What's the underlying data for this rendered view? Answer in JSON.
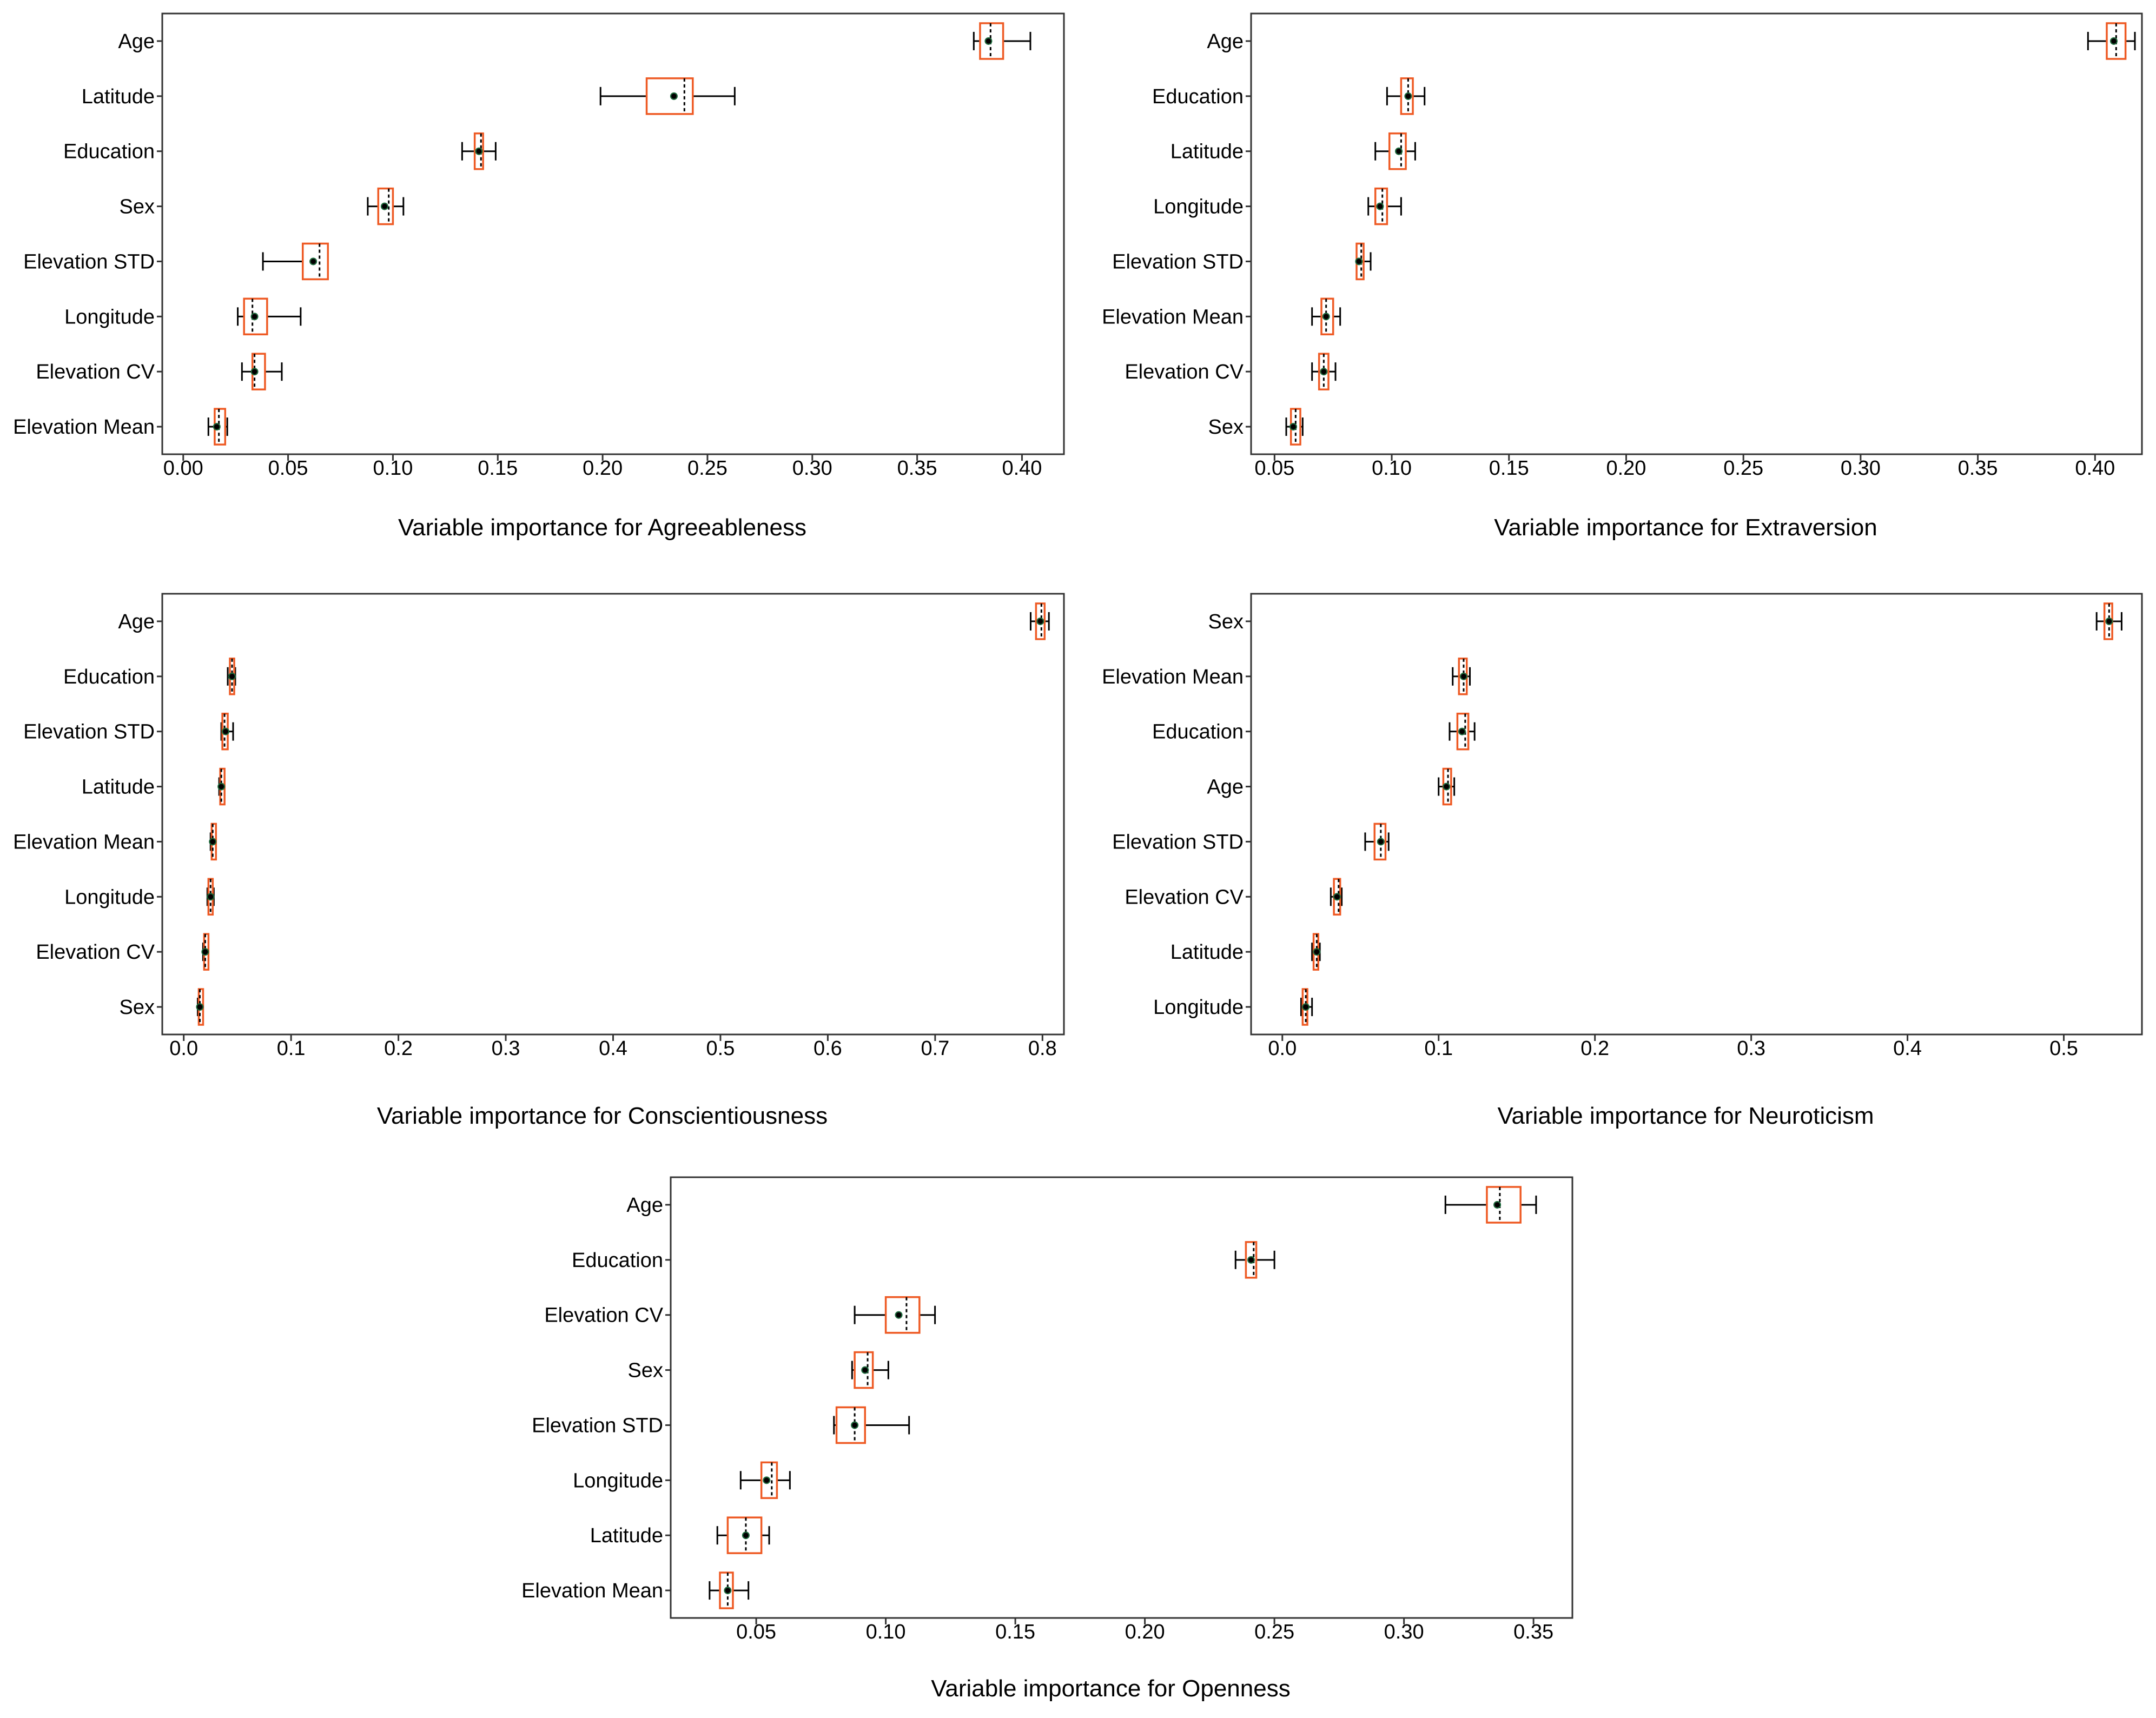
{
  "colors": {
    "box_stroke": "#ee5a24",
    "whisker": "#000000",
    "mean": "#000000",
    "frame": "#333333"
  },
  "chart_data": [
    {
      "type": "box",
      "xlabel": "Variable importance for Agreeableness",
      "xlim": [
        -0.01,
        0.42
      ],
      "xticks": [
        "0.00",
        "0.05",
        "0.10",
        "0.15",
        "0.20",
        "0.25",
        "0.30",
        "0.35",
        "0.40"
      ],
      "grid": false,
      "categories": [
        "Age",
        "Latitude",
        "Education",
        "Sex",
        "Elevation STD",
        "Longitude",
        "Elevation CV",
        "Elevation Mean"
      ],
      "stats": [
        {
          "min": 0.377,
          "q1": 0.38,
          "median": 0.385,
          "mean": 0.384,
          "q3": 0.391,
          "max": 0.404
        },
        {
          "min": 0.199,
          "q1": 0.221,
          "median": 0.239,
          "mean": 0.234,
          "q3": 0.243,
          "max": 0.263
        },
        {
          "min": 0.133,
          "q1": 0.139,
          "median": 0.142,
          "mean": 0.141,
          "q3": 0.143,
          "max": 0.149
        },
        {
          "min": 0.088,
          "q1": 0.093,
          "median": 0.098,
          "mean": 0.096,
          "q3": 0.1,
          "max": 0.105
        },
        {
          "min": 0.038,
          "q1": 0.057,
          "median": 0.065,
          "mean": 0.062,
          "q3": 0.069,
          "max": 0.069
        },
        {
          "min": 0.026,
          "q1": 0.029,
          "median": 0.033,
          "mean": 0.034,
          "q3": 0.04,
          "max": 0.056
        },
        {
          "min": 0.028,
          "q1": 0.033,
          "median": 0.034,
          "mean": 0.034,
          "q3": 0.039,
          "max": 0.047
        },
        {
          "min": 0.012,
          "q1": 0.015,
          "median": 0.017,
          "mean": 0.016,
          "q3": 0.02,
          "max": 0.021
        }
      ]
    },
    {
      "type": "box",
      "xlabel": "Variable importance for Extraversion",
      "xlim": [
        0.04,
        0.42
      ],
      "xticks": [
        "0.05",
        "0.10",
        "0.15",
        "0.20",
        "0.25",
        "0.30",
        "0.35",
        "0.40"
      ],
      "grid": false,
      "categories": [
        "Age",
        "Education",
        "Latitude",
        "Longitude",
        "Elevation STD",
        "Elevation Mean",
        "Elevation CV",
        "Sex"
      ],
      "stats": [
        {
          "min": 0.397,
          "q1": 0.405,
          "median": 0.409,
          "mean": 0.408,
          "q3": 0.413,
          "max": 0.417
        },
        {
          "min": 0.098,
          "q1": 0.104,
          "median": 0.107,
          "mean": 0.107,
          "q3": 0.109,
          "max": 0.114
        },
        {
          "min": 0.093,
          "q1": 0.099,
          "median": 0.104,
          "mean": 0.103,
          "q3": 0.106,
          "max": 0.11
        },
        {
          "min": 0.09,
          "q1": 0.093,
          "median": 0.096,
          "mean": 0.095,
          "q3": 0.098,
          "max": 0.104
        },
        {
          "min": 0.085,
          "q1": 0.085,
          "median": 0.087,
          "mean": 0.086,
          "q3": 0.088,
          "max": 0.091
        },
        {
          "min": 0.066,
          "q1": 0.07,
          "median": 0.072,
          "mean": 0.072,
          "q3": 0.075,
          "max": 0.078
        },
        {
          "min": 0.066,
          "q1": 0.069,
          "median": 0.071,
          "mean": 0.071,
          "q3": 0.073,
          "max": 0.076
        },
        {
          "min": 0.055,
          "q1": 0.057,
          "median": 0.059,
          "mean": 0.058,
          "q3": 0.061,
          "max": 0.062
        }
      ]
    },
    {
      "type": "box",
      "xlabel": "Variable importance for Conscientiousness",
      "xlim": [
        -0.02,
        0.82
      ],
      "xticks": [
        "0.0",
        "0.1",
        "0.2",
        "0.3",
        "0.4",
        "0.5",
        "0.6",
        "0.7",
        "0.8"
      ],
      "grid": false,
      "categories": [
        "Age",
        "Education",
        "Elevation STD",
        "Latitude",
        "Elevation Mean",
        "Longitude",
        "Elevation CV",
        "Sex"
      ],
      "stats": [
        {
          "min": 0.789,
          "q1": 0.794,
          "median": 0.799,
          "mean": 0.798,
          "q3": 0.802,
          "max": 0.806
        },
        {
          "min": 0.041,
          "q1": 0.043,
          "median": 0.045,
          "mean": 0.045,
          "q3": 0.046,
          "max": 0.048
        },
        {
          "min": 0.035,
          "q1": 0.036,
          "median": 0.038,
          "mean": 0.039,
          "q3": 0.041,
          "max": 0.046
        },
        {
          "min": 0.033,
          "q1": 0.034,
          "median": 0.035,
          "mean": 0.035,
          "q3": 0.037,
          "max": 0.038
        },
        {
          "min": 0.025,
          "q1": 0.026,
          "median": 0.027,
          "mean": 0.027,
          "q3": 0.029,
          "max": 0.03
        },
        {
          "min": 0.022,
          "q1": 0.023,
          "median": 0.025,
          "mean": 0.025,
          "q3": 0.026,
          "max": 0.028
        },
        {
          "min": 0.018,
          "q1": 0.019,
          "median": 0.02,
          "mean": 0.02,
          "q3": 0.022,
          "max": 0.023
        },
        {
          "min": 0.013,
          "q1": 0.014,
          "median": 0.015,
          "mean": 0.015,
          "q3": 0.016,
          "max": 0.017
        }
      ]
    },
    {
      "type": "box",
      "xlabel": "Variable importance for Neuroticism",
      "xlim": [
        -0.02,
        0.55
      ],
      "xticks": [
        "0.0",
        "0.1",
        "0.2",
        "0.3",
        "0.4",
        "0.5"
      ],
      "grid": false,
      "categories": [
        "Sex",
        "Elevation Mean",
        "Education",
        "Age",
        "Elevation STD",
        "Elevation CV",
        "Latitude",
        "Longitude"
      ],
      "stats": [
        {
          "min": 0.521,
          "q1": 0.526,
          "median": 0.529,
          "mean": 0.529,
          "q3": 0.531,
          "max": 0.537
        },
        {
          "min": 0.109,
          "q1": 0.113,
          "median": 0.116,
          "mean": 0.116,
          "q3": 0.118,
          "max": 0.12
        },
        {
          "min": 0.107,
          "q1": 0.112,
          "median": 0.117,
          "mean": 0.115,
          "q3": 0.119,
          "max": 0.123
        },
        {
          "min": 0.1,
          "q1": 0.103,
          "median": 0.106,
          "mean": 0.105,
          "q3": 0.108,
          "max": 0.11
        },
        {
          "min": 0.053,
          "q1": 0.059,
          "median": 0.063,
          "mean": 0.063,
          "q3": 0.066,
          "max": 0.068
        },
        {
          "min": 0.031,
          "q1": 0.033,
          "median": 0.036,
          "mean": 0.035,
          "q3": 0.037,
          "max": 0.038
        },
        {
          "min": 0.019,
          "q1": 0.02,
          "median": 0.022,
          "mean": 0.022,
          "q3": 0.023,
          "max": 0.024
        },
        {
          "min": 0.012,
          "q1": 0.013,
          "median": 0.015,
          "mean": 0.015,
          "q3": 0.016,
          "max": 0.019
        }
      ]
    },
    {
      "type": "box",
      "xlabel": "Variable importance for Openness",
      "xlim": [
        0.017,
        0.365
      ],
      "xticks": [
        "0.05",
        "0.10",
        "0.15",
        "0.20",
        "0.25",
        "0.30",
        "0.35"
      ],
      "grid": false,
      "categories": [
        "Age",
        "Education",
        "Elevation CV",
        "Sex",
        "Elevation STD",
        "Longitude",
        "Latitude",
        "Elevation Mean"
      ],
      "stats": [
        {
          "min": 0.316,
          "q1": 0.332,
          "median": 0.337,
          "mean": 0.336,
          "q3": 0.345,
          "max": 0.351
        },
        {
          "min": 0.235,
          "q1": 0.239,
          "median": 0.242,
          "mean": 0.241,
          "q3": 0.243,
          "max": 0.25
        },
        {
          "min": 0.088,
          "q1": 0.1,
          "median": 0.108,
          "mean": 0.105,
          "q3": 0.113,
          "max": 0.119
        },
        {
          "min": 0.087,
          "q1": 0.088,
          "median": 0.093,
          "mean": 0.092,
          "q3": 0.095,
          "max": 0.101
        },
        {
          "min": 0.08,
          "q1": 0.081,
          "median": 0.088,
          "mean": 0.088,
          "q3": 0.092,
          "max": 0.109
        },
        {
          "min": 0.044,
          "q1": 0.052,
          "median": 0.056,
          "mean": 0.054,
          "q3": 0.058,
          "max": 0.063
        },
        {
          "min": 0.035,
          "q1": 0.039,
          "median": 0.046,
          "mean": 0.046,
          "q3": 0.052,
          "max": 0.055
        },
        {
          "min": 0.032,
          "q1": 0.036,
          "median": 0.039,
          "mean": 0.039,
          "q3": 0.041,
          "max": 0.047
        }
      ]
    }
  ]
}
